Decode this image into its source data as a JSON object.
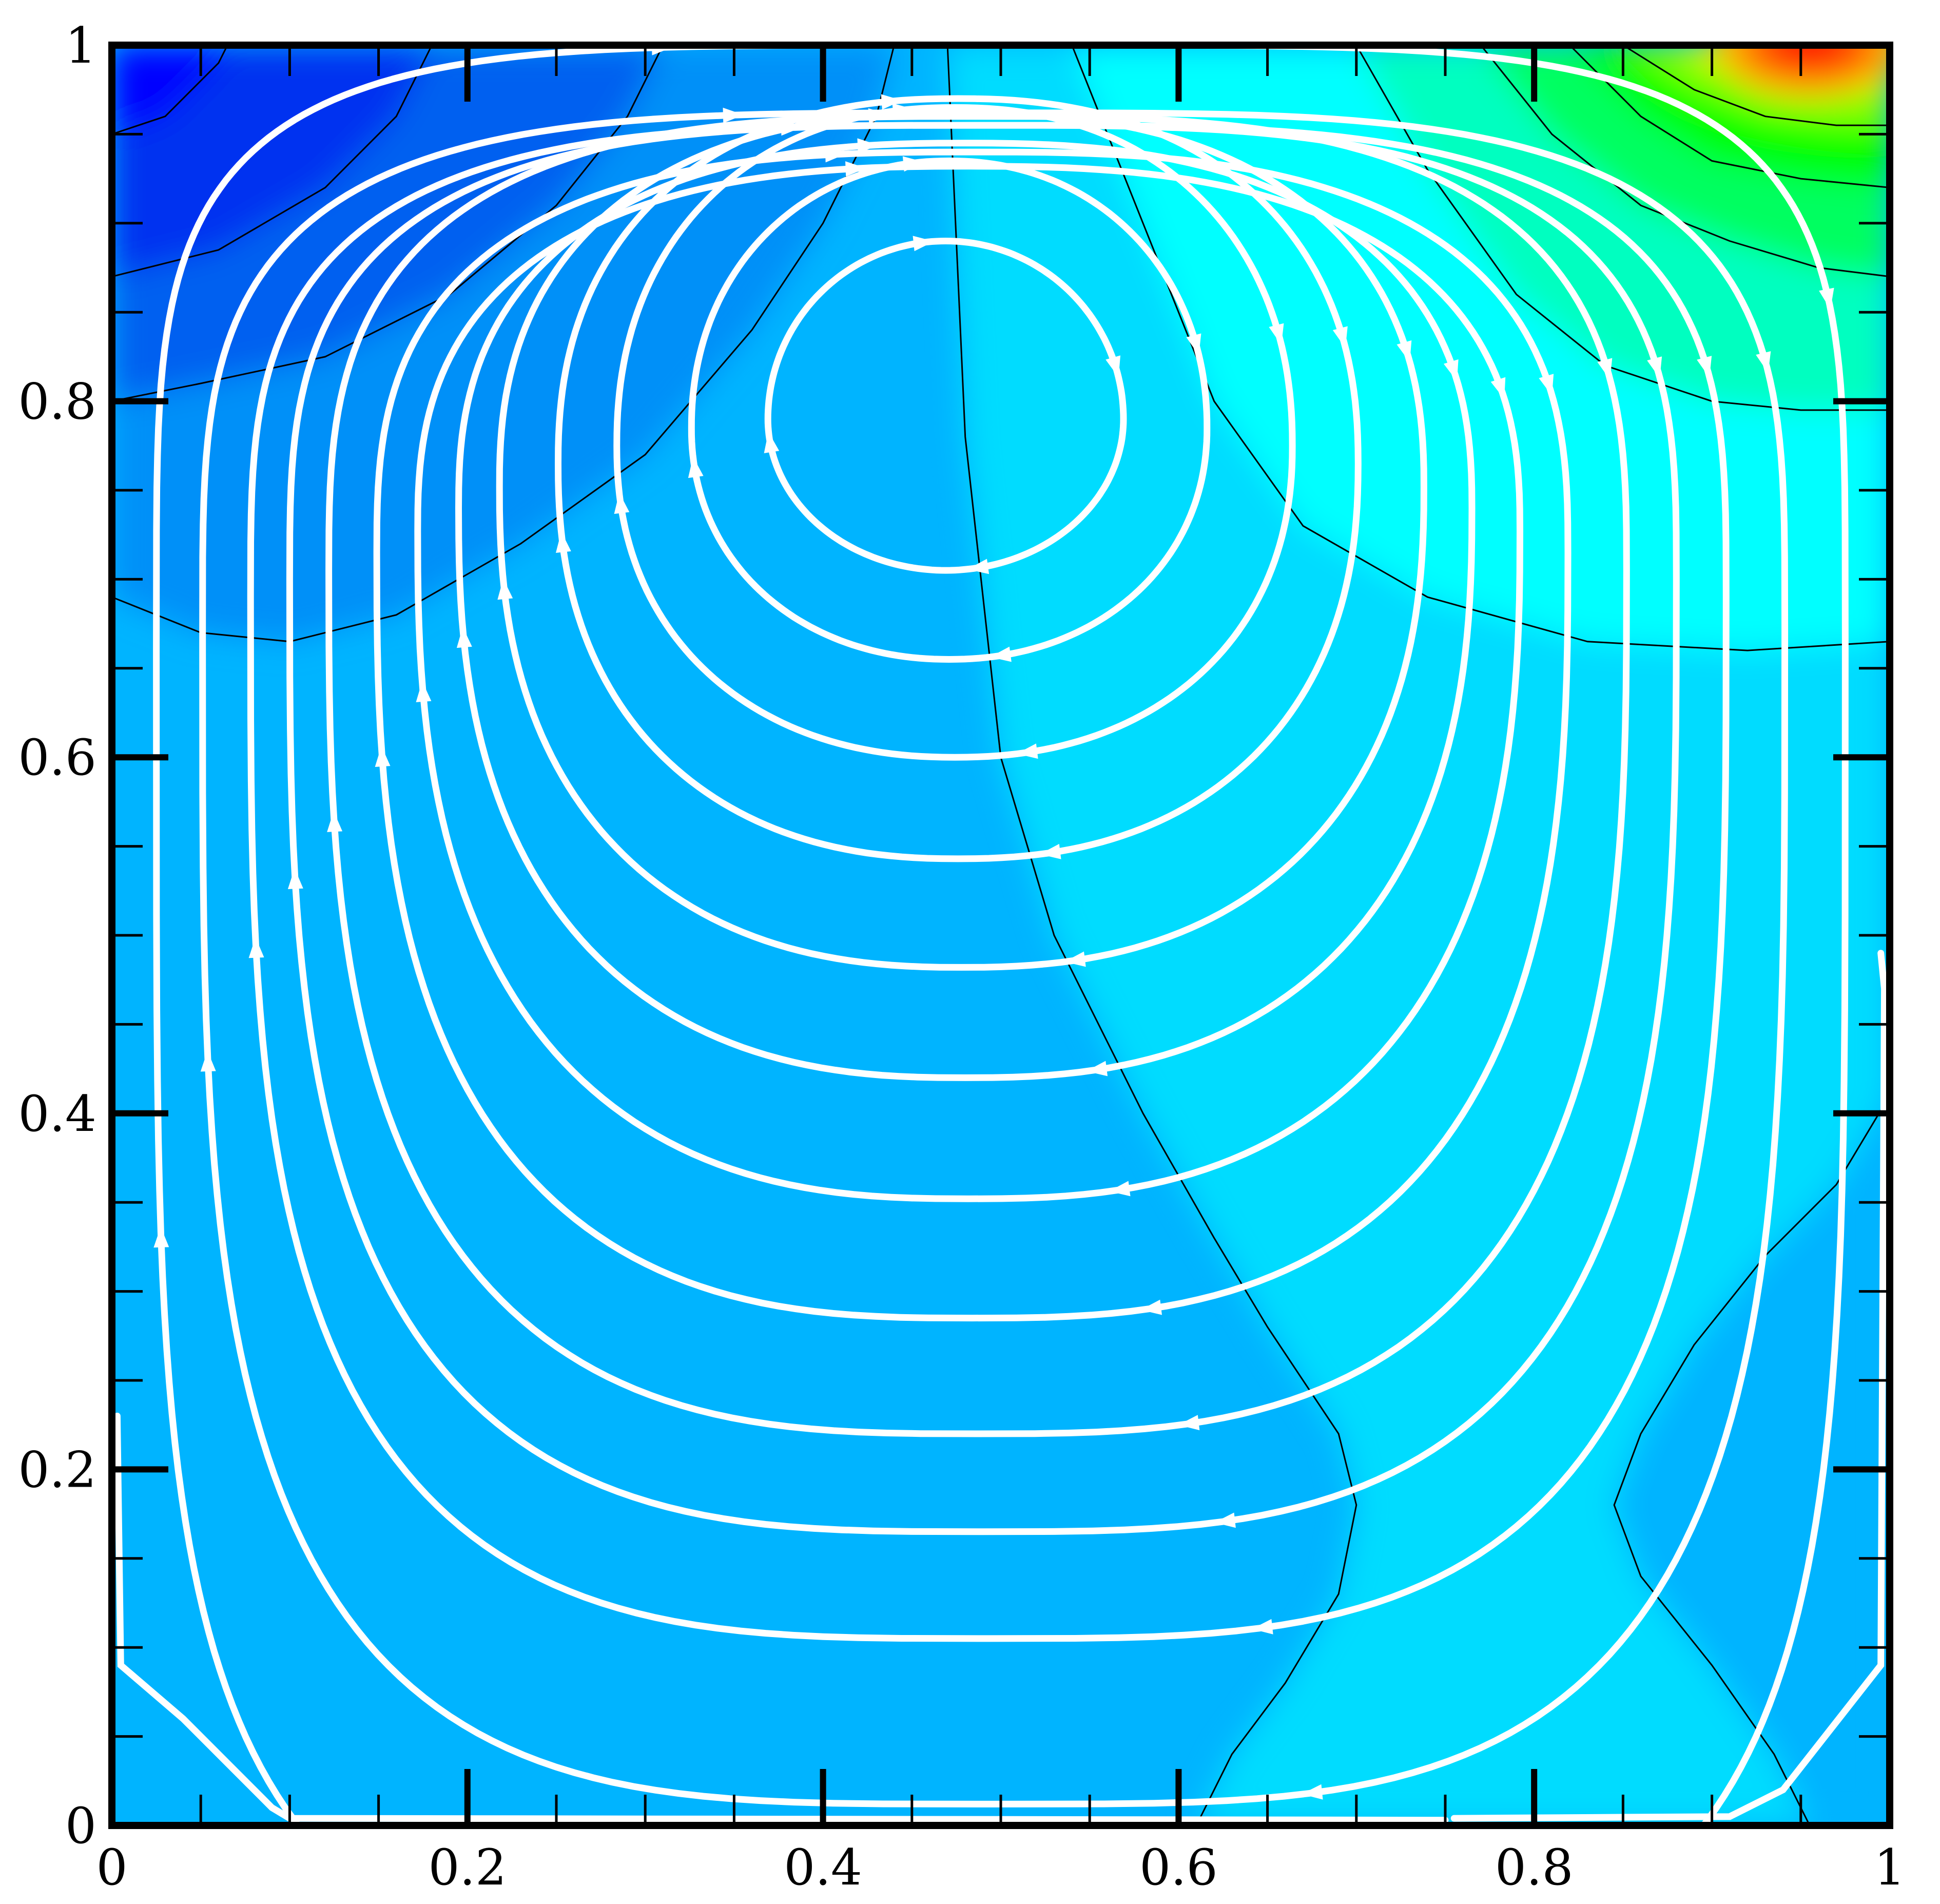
{
  "chart_data": {
    "type": "contour",
    "xlim": [
      0,
      1
    ],
    "ylim": [
      0,
      1
    ],
    "x_ticks": [
      {
        "value": 0,
        "label": "0"
      },
      {
        "value": 0.2,
        "label": "0.2"
      },
      {
        "value": 0.4,
        "label": "0.4"
      },
      {
        "value": 0.6,
        "label": "0.6"
      },
      {
        "value": 0.8,
        "label": "0.8"
      },
      {
        "value": 1,
        "label": "1"
      }
    ],
    "y_ticks": [
      {
        "value": 0,
        "label": "0"
      },
      {
        "value": 0.2,
        "label": "0.2"
      },
      {
        "value": 0.4,
        "label": "0.4"
      },
      {
        "value": 0.6,
        "label": "0.6"
      },
      {
        "value": 0.8,
        "label": "0.8"
      },
      {
        "value": 1,
        "label": "1"
      }
    ],
    "minor_tick_step": 0.05,
    "grid": false,
    "vortex_center": {
      "x": 0.48,
      "y": 0.78
    },
    "streamlines": [
      {
        "cx": 0.469,
        "cy": 0.79,
        "rx": 0.1,
        "ry": 0.085,
        "up": 0.1,
        "squareness": 2.0
      },
      {
        "cx": 0.471,
        "cy": 0.785,
        "rx": 0.145,
        "ry": 0.13,
        "up": 0.15,
        "squareness": 2.1
      },
      {
        "cx": 0.474,
        "cy": 0.775,
        "rx": 0.19,
        "ry": 0.175,
        "up": 0.19,
        "squareness": 2.2
      },
      {
        "cx": 0.476,
        "cy": 0.765,
        "rx": 0.225,
        "ry": 0.222,
        "up": 0.205,
        "squareness": 2.3
      },
      {
        "cx": 0.478,
        "cy": 0.752,
        "rx": 0.26,
        "ry": 0.27,
        "up": 0.21,
        "squareness": 2.4
      },
      {
        "cx": 0.48,
        "cy": 0.74,
        "rx": 0.285,
        "ry": 0.32,
        "up": 0.205,
        "squareness": 2.5
      },
      {
        "cx": 0.482,
        "cy": 0.727,
        "rx": 0.31,
        "ry": 0.375,
        "up": 0.205,
        "squareness": 2.6
      },
      {
        "cx": 0.484,
        "cy": 0.715,
        "rx": 0.335,
        "ry": 0.43,
        "up": 0.225,
        "squareness": 2.8
      },
      {
        "cx": 0.487,
        "cy": 0.705,
        "rx": 0.365,
        "ry": 0.485,
        "up": 0.255,
        "squareness": 3.0
      },
      {
        "cx": 0.49,
        "cy": 0.7,
        "rx": 0.39,
        "ry": 0.535,
        "up": 0.255,
        "squareness": 3.2
      },
      {
        "cx": 0.493,
        "cy": 0.69,
        "rx": 0.415,
        "ry": 0.585,
        "up": 0.265,
        "squareness": 3.4
      },
      {
        "cx": 0.496,
        "cy": 0.672,
        "rx": 0.445,
        "ry": 0.66,
        "up": 0.29,
        "squareness": 3.7
      },
      {
        "cx": 0.5,
        "cy": 0.66,
        "rx": 0.475,
        "ry": 0.75,
        "up": 0.34,
        "squareness": 4.5
      }
    ],
    "corner_streamlines": [
      {
        "side": "left",
        "points": [
          [
            0.003,
            0.23
          ],
          [
            0.005,
            0.09
          ],
          [
            0.04,
            0.06
          ],
          [
            0.09,
            0.01
          ],
          [
            0.1,
            0.004
          ],
          [
            0.75,
            0.003
          ]
        ]
      },
      {
        "side": "right",
        "points": [
          [
            0.755,
            0.004
          ],
          [
            0.91,
            0.005
          ],
          [
            0.94,
            0.02
          ],
          [
            0.995,
            0.09
          ],
          [
            0.997,
            0.47
          ],
          [
            0.995,
            0.49
          ]
        ]
      }
    ],
    "colormap": [
      "#0000ff",
      "#0033f0",
      "#0060f0",
      "#0090f8",
      "#00b4ff",
      "#00c8ff",
      "#00dcff",
      "#00ffff",
      "#00ffc0",
      "#00ff60",
      "#00ff00",
      "#80ff00",
      "#ffff00",
      "#ffc000",
      "#ff8000",
      "#ff4000",
      "#ff0000"
    ],
    "streamline_color": "#ffffff",
    "contour_line_color": "#000000"
  }
}
